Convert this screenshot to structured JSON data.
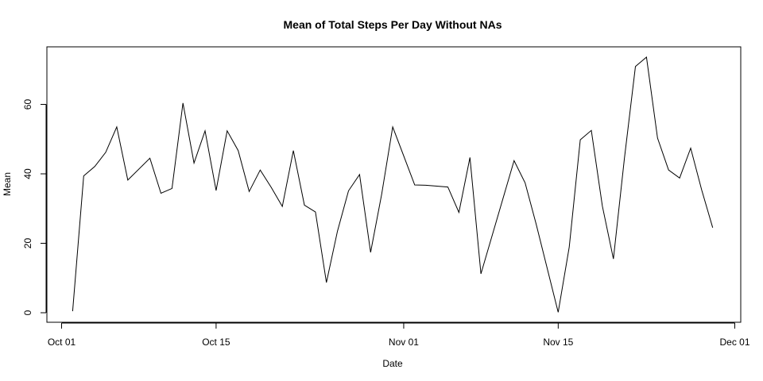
{
  "chart_data": {
    "type": "line",
    "title": "Mean of Total Steps Per Day Without NAs",
    "xlabel": "Date",
    "ylabel": "Mean",
    "xlim": [
      "2012-10-01",
      "2012-12-01"
    ],
    "ylim": [
      0,
      75
    ],
    "x_ticks": [
      {
        "date": "2012-10-01",
        "label": "Oct 01"
      },
      {
        "date": "2012-10-15",
        "label": "Oct 15"
      },
      {
        "date": "2012-11-01",
        "label": "Nov 01"
      },
      {
        "date": "2012-11-15",
        "label": "Nov 15"
      },
      {
        "date": "2012-12-01",
        "label": "Dec 01"
      }
    ],
    "y_ticks": [
      0,
      20,
      40,
      60
    ],
    "grid": false,
    "line_color": "#000000",
    "series": [
      {
        "x": [
          "2012-10-02",
          "2012-10-03",
          "2012-10-04",
          "2012-10-05",
          "2012-10-06",
          "2012-10-07",
          "2012-10-09",
          "2012-10-10",
          "2012-10-11",
          "2012-10-12",
          "2012-10-13",
          "2012-10-14",
          "2012-10-15",
          "2012-10-16",
          "2012-10-17",
          "2012-10-18",
          "2012-10-19",
          "2012-10-20",
          "2012-10-21",
          "2012-10-22",
          "2012-10-23",
          "2012-10-24",
          "2012-10-25",
          "2012-10-26",
          "2012-10-27",
          "2012-10-28",
          "2012-10-29",
          "2012-10-30",
          "2012-10-31",
          "2012-11-02",
          "2012-11-03",
          "2012-11-05",
          "2012-11-06",
          "2012-11-07",
          "2012-11-08",
          "2012-11-11",
          "2012-11-12",
          "2012-11-13",
          "2012-11-15",
          "2012-11-16",
          "2012-11-17",
          "2012-11-18",
          "2012-11-19",
          "2012-11-20",
          "2012-11-21",
          "2012-11-22",
          "2012-11-23",
          "2012-11-24",
          "2012-11-25",
          "2012-11-26",
          "2012-11-27",
          "2012-11-28",
          "2012-11-29"
        ],
        "y": [
          0.44,
          39.4,
          42.1,
          46.2,
          53.5,
          38.2,
          44.5,
          34.4,
          35.8,
          60.4,
          43.1,
          52.4,
          35.2,
          52.4,
          46.7,
          34.9,
          41.1,
          36.1,
          30.6,
          46.7,
          31.0,
          29.0,
          8.7,
          23.5,
          35.1,
          39.8,
          17.4,
          34.1,
          53.5,
          36.8,
          36.7,
          36.2,
          28.9,
          44.7,
          11.2,
          43.8,
          37.4,
          25.5,
          0.14,
          18.9,
          49.8,
          52.5,
          30.7,
          15.5,
          44.4,
          70.9,
          73.6,
          50.3,
          41.1,
          38.8,
          47.4,
          35.4,
          24.5
        ]
      }
    ]
  }
}
